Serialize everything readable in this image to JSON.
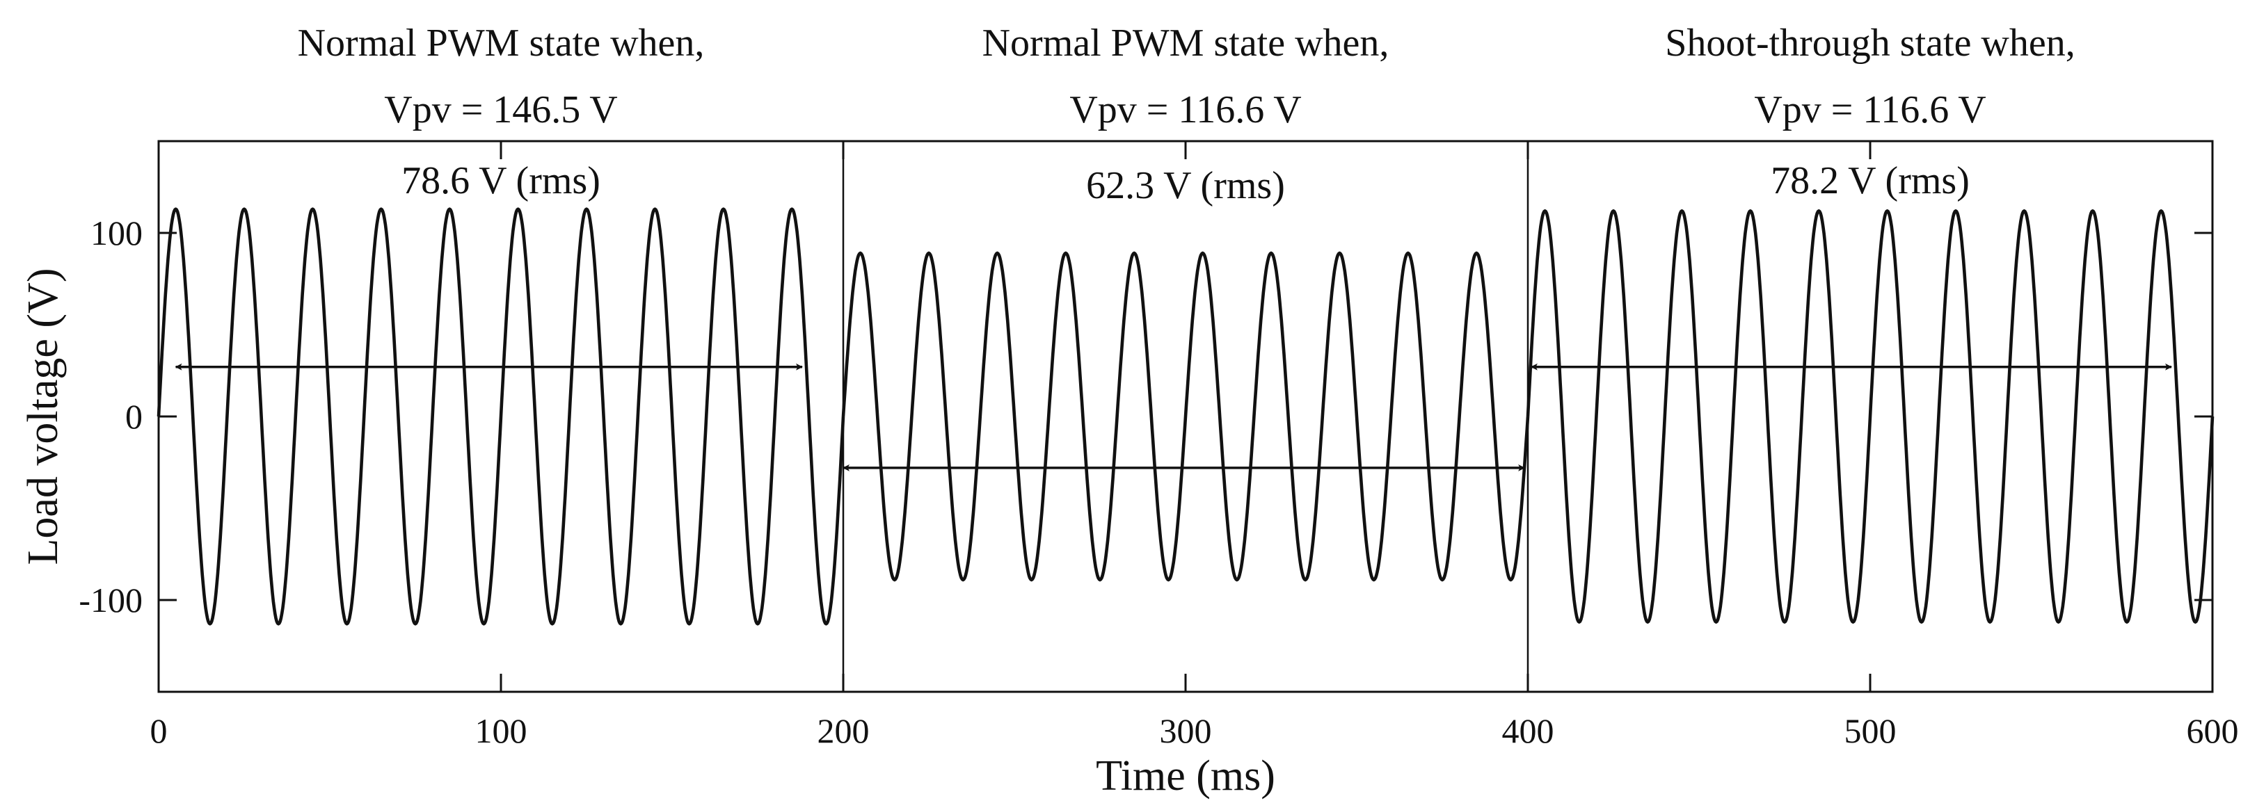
{
  "chart_data": {
    "type": "line",
    "title": "",
    "xlabel": "Time (ms)",
    "ylabel": "Load voltage (V)",
    "xlim": [
      0,
      600
    ],
    "ylim": [
      -150,
      150
    ],
    "xticks": [
      0,
      100,
      200,
      300,
      400,
      500,
      600
    ],
    "xtick_labels": [
      "0",
      "100",
      "200",
      "300",
      "400",
      "500",
      "600"
    ],
    "yticks": [
      100,
      0,
      -100
    ],
    "ytick_labels": [
      "100",
      "0",
      "-100"
    ],
    "grid": false,
    "frequency_hz": 50,
    "segments": [
      {
        "name": "Normal PWM state when, Vpv = 146.5 V",
        "t_start": 0,
        "t_end": 200,
        "amplitude": 113,
        "label_line1": "Normal PWM state when,",
        "label_line2": "Vpv = 146.5 V",
        "rms_label": "78.6 V (rms)",
        "arrow": {
          "from": 5,
          "to": 188,
          "y": 27
        }
      },
      {
        "name": "Normal PWM state when, Vpv = 116.6 V",
        "t_start": 200,
        "t_end": 400,
        "amplitude": 89,
        "label_line1": "Normal PWM state when,",
        "label_line2": "Vpv = 116.6 V",
        "rms_label": "62.3 V (rms)",
        "arrow": {
          "from": 200,
          "to": 399,
          "y": -28
        }
      },
      {
        "name": "Shoot-through state when, Vpv = 116.6 V",
        "t_start": 400,
        "t_end": 600,
        "amplitude": 112,
        "label_line1": "Shoot-through state when,",
        "label_line2": "Vpv = 116.6 V",
        "rms_label": "78.2 V (rms)",
        "arrow": {
          "from": 401,
          "to": 588,
          "y": 27
        }
      }
    ],
    "dividers_at": [
      200,
      400
    ]
  }
}
